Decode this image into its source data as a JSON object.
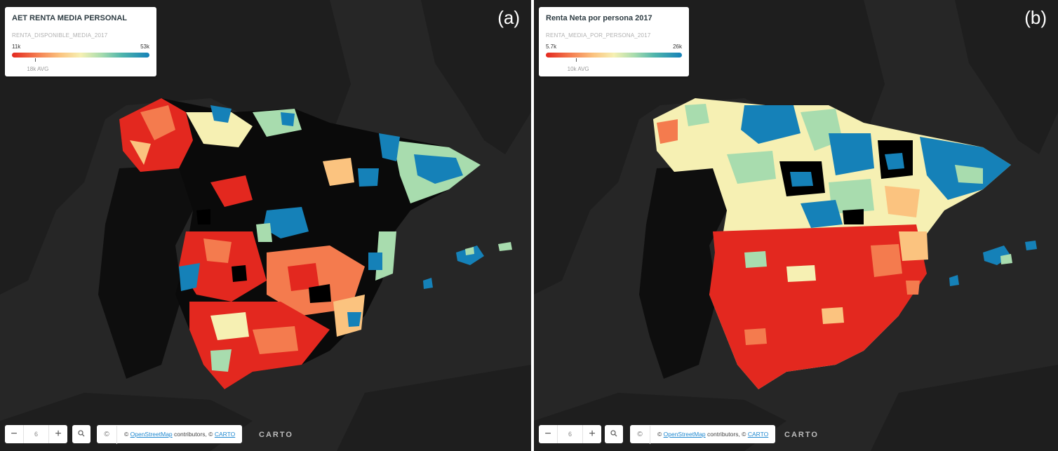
{
  "panels": [
    {
      "tag": "(a)",
      "legend": {
        "title": "AET RENTA MEDIA PERSONAL",
        "field": "RENTA_DISPONIBLE_MEDIA_2017",
        "min": "11k",
        "max": "53k",
        "avg": "18k AVG",
        "avg_fraction": 0.17
      },
      "map": {
        "dominant_colors": [
          "#e3281f",
          "#f47b4e",
          "#fbc37f",
          "#f6f0b3",
          "#a8dcae",
          "#1581b8",
          "#000000"
        ],
        "no_data_color": "#000000"
      },
      "controls": {
        "zoom_minus": "−",
        "zoom_level": "6",
        "zoom_plus": "+",
        "search_icon": "search-icon",
        "copyright_symbol": "©",
        "attribution_prefix": "©",
        "osm_link": "OpenStreetMap",
        "attribution_mid": "contributors, ©",
        "carto_link": "CARTO",
        "logo": "CARTO"
      }
    },
    {
      "tag": "(b)",
      "legend": {
        "title": "Renta Neta por persona 2017",
        "field": "RENTA_MEDIA_POR_PERSONA_2017",
        "min": "5.7k",
        "max": "26k",
        "avg": "10k AVG",
        "avg_fraction": 0.22
      },
      "map": {
        "dominant_colors": [
          "#e3281f",
          "#f47b4e",
          "#fbc37f",
          "#f6f0b3",
          "#a8dcae",
          "#1581b8",
          "#000000"
        ],
        "no_data_color": "#000000"
      },
      "controls": {
        "zoom_minus": "−",
        "zoom_level": "6",
        "zoom_plus": "+",
        "search_icon": "search-icon",
        "copyright_symbol": "©",
        "attribution_prefix": "©",
        "osm_link": "OpenStreetMap",
        "attribution_mid": "contributors, ©",
        "carto_link": "CARTO",
        "logo": "CARTO"
      }
    }
  ]
}
